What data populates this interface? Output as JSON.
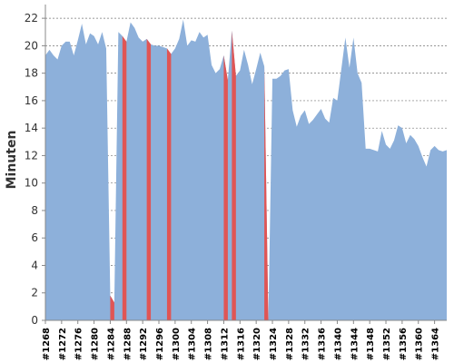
{
  "chart_data": {
    "type": "area",
    "title": "",
    "xlabel": "",
    "ylabel": "Minuten",
    "ylim": [
      0,
      23
    ],
    "yticks": [
      0,
      2,
      4,
      6,
      8,
      10,
      12,
      14,
      16,
      18,
      20,
      22
    ],
    "grid": true,
    "legend": "none",
    "x_start": 1268,
    "x_end": 1367,
    "xticks": [
      1268,
      1272,
      1276,
      1280,
      1284,
      1288,
      1292,
      1296,
      1300,
      1304,
      1308,
      1312,
      1316,
      1320,
      1324,
      1328,
      1332,
      1336,
      1340,
      1344,
      1348,
      1352,
      1356,
      1360,
      1364
    ],
    "xtick_labels": [
      "#1268",
      "#1272",
      "#1276",
      "#1280",
      "#1284",
      "#1288",
      "#1292",
      "#1296",
      "#1300",
      "#1304",
      "#1308",
      "#1312",
      "#1316",
      "#1320",
      "#1324",
      "#1328",
      "#1332",
      "#1336",
      "#1340",
      "#1344",
      "#1348",
      "#1352",
      "#1356",
      "#1360",
      "#1364"
    ],
    "series": [
      {
        "color": "#8DB0DA",
        "values": [
          19.3,
          19.7,
          19.3,
          19.0,
          20.0,
          20.3,
          20.3,
          19.3,
          20.4,
          21.6,
          20.1,
          20.9,
          20.7,
          20.1,
          21.0,
          19.8,
          1.8,
          1.3,
          21.0,
          20.7,
          20.3,
          21.7,
          21.3,
          20.6,
          20.3,
          20.5,
          20.1,
          20.0,
          20.0,
          19.9,
          19.8,
          19.4,
          19.8,
          20.5,
          21.9,
          20.0,
          20.4,
          20.3,
          21.0,
          20.6,
          20.8,
          18.6,
          18.0,
          18.3,
          19.3,
          17.5,
          21.1,
          17.8,
          18.2,
          19.7,
          18.6,
          17.2,
          18.3,
          19.5,
          18.5,
          0.0,
          17.6,
          17.6,
          17.8,
          18.2,
          18.3,
          15.3,
          14.1,
          14.9,
          15.3,
          14.3,
          14.6,
          15.0,
          15.4,
          14.7,
          14.4,
          16.2,
          16.0,
          18.3,
          20.6,
          18.4,
          20.6,
          18.0,
          17.3,
          12.5,
          12.5,
          12.4,
          12.3,
          13.8,
          12.8,
          12.5,
          13.1,
          14.2,
          14.0,
          12.9,
          13.5,
          13.2,
          12.7,
          11.9,
          11.2,
          12.4,
          12.7,
          12.4,
          12.3,
          12.4
        ]
      }
    ],
    "failed_runs": [
      {
        "build": 1284,
        "color": "#E05555"
      },
      {
        "build": 1287,
        "color": "#E05555"
      },
      {
        "build": 1293,
        "color": "#E05555"
      },
      {
        "build": 1298,
        "color": "#E05555"
      },
      {
        "build": 1312,
        "color": "#E05555"
      },
      {
        "build": 1314,
        "color": "#E05555"
      },
      {
        "build": 1322,
        "color": "#E05555"
      }
    ]
  }
}
